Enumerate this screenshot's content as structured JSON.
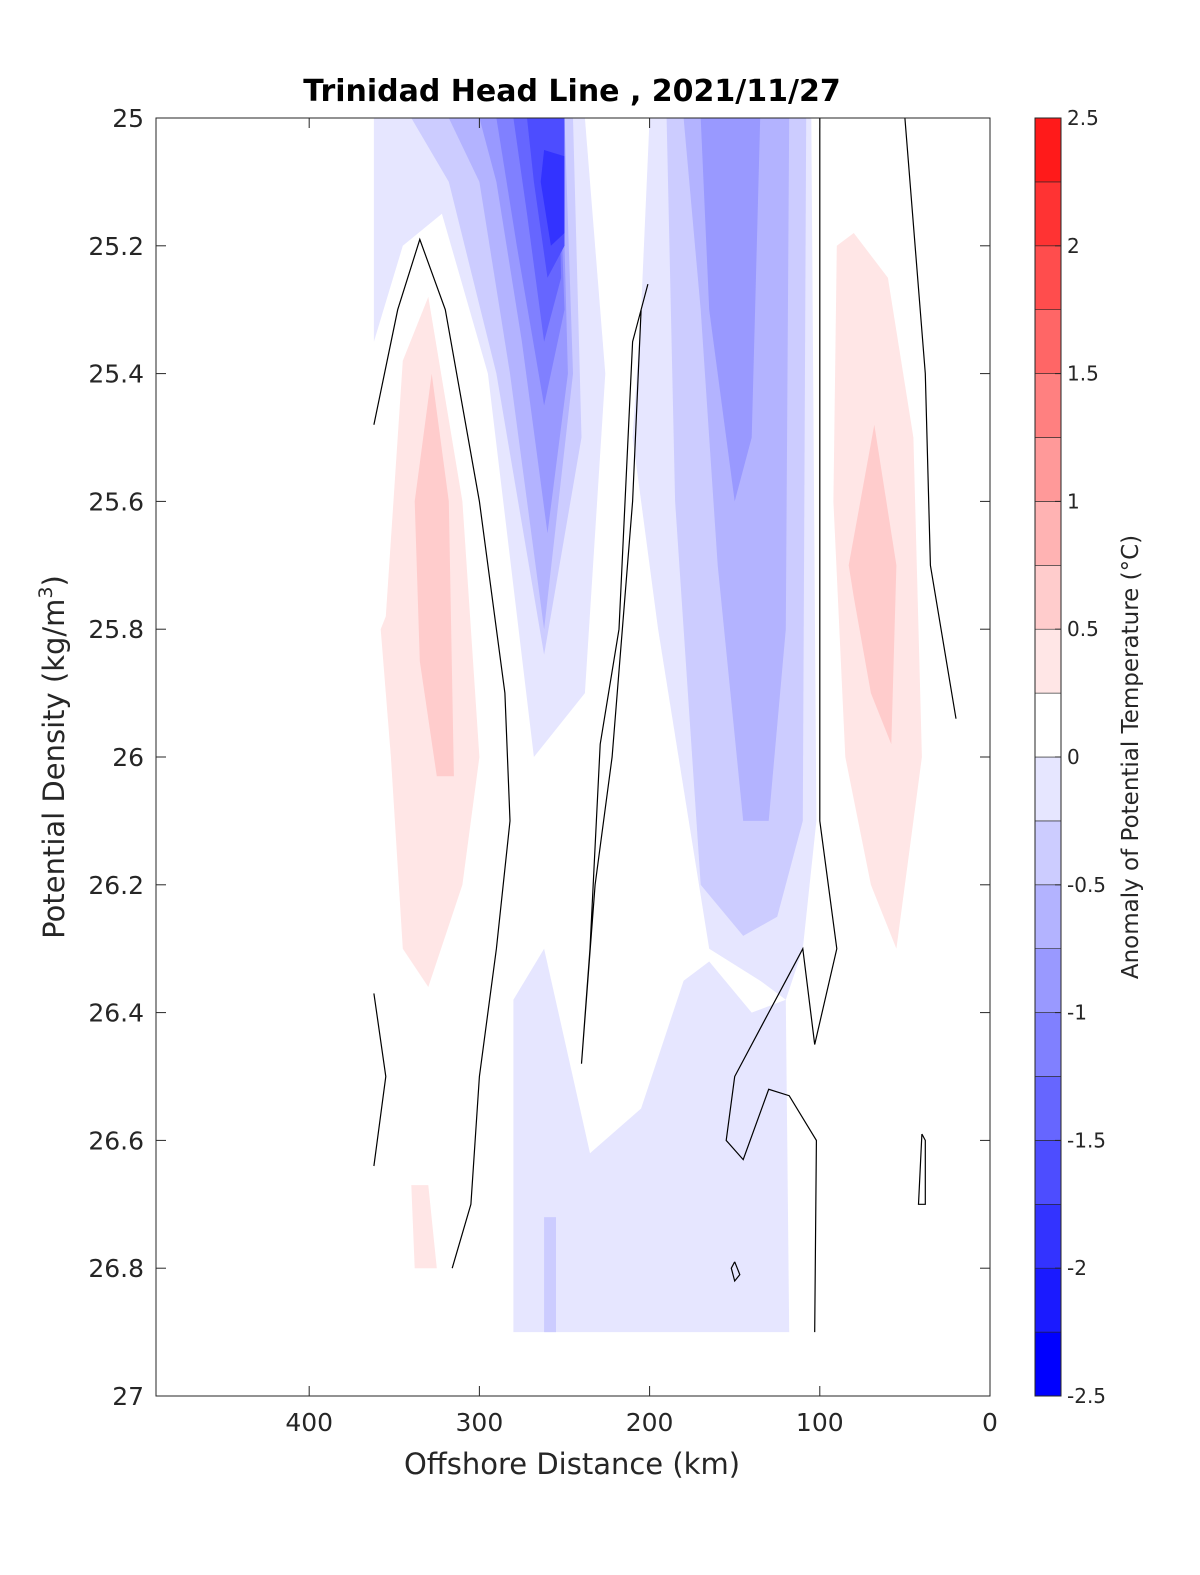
{
  "chart_data": {
    "type": "heatmap",
    "subtype": "filled-contour section",
    "title": "Trinidad Head Line , 2021/11/27",
    "xlabel": "Offshore Distance (km)",
    "ylabel": "Potential Density (kg/m",
    "ylabel_superscript": "3",
    "ylabel_suffix": ")",
    "x_axis": {
      "ticks": [
        400,
        300,
        200,
        100,
        0
      ],
      "lim": [
        490,
        0
      ],
      "reversed": true
    },
    "y_axis": {
      "ticks": [
        25,
        25.2,
        25.4,
        25.6,
        25.8,
        26,
        26.2,
        26.4,
        26.6,
        26.8,
        27
      ],
      "lim": [
        25,
        27
      ],
      "reversed": true
    },
    "colorbar": {
      "label": "Anomaly of Potential Temperature (°C)",
      "ticks": [
        2.5,
        2,
        1.5,
        1,
        0.5,
        0,
        -0.5,
        -1,
        -1.5,
        -2,
        -2.5
      ],
      "levels": [
        {
          "from": -2.5,
          "to": -2.25,
          "color": "#0000ff"
        },
        {
          "from": -2.25,
          "to": -2.0,
          "color": "#1a1aff"
        },
        {
          "from": -2.0,
          "to": -1.75,
          "color": "#3333ff"
        },
        {
          "from": -1.75,
          "to": -1.5,
          "color": "#4d4dff"
        },
        {
          "from": -1.5,
          "to": -1.25,
          "color": "#6666ff"
        },
        {
          "from": -1.25,
          "to": -1.0,
          "color": "#8080ff"
        },
        {
          "from": -1.0,
          "to": -0.75,
          "color": "#9999ff"
        },
        {
          "from": -0.75,
          "to": -0.5,
          "color": "#b3b3ff"
        },
        {
          "from": -0.5,
          "to": -0.25,
          "color": "#ccccff"
        },
        {
          "from": -0.25,
          "to": 0.0,
          "color": "#e6e6ff"
        },
        {
          "from": 0.0,
          "to": 0.25,
          "color": "#ffffff"
        },
        {
          "from": 0.25,
          "to": 0.5,
          "color": "#ffe6e6"
        },
        {
          "from": 0.5,
          "to": 0.75,
          "color": "#ffcccc"
        },
        {
          "from": 0.75,
          "to": 1.0,
          "color": "#ffb3b3"
        },
        {
          "from": 1.0,
          "to": 1.25,
          "color": "#ff9999"
        },
        {
          "from": 1.25,
          "to": 1.5,
          "color": "#ff8080"
        },
        {
          "from": 1.5,
          "to": 1.75,
          "color": "#ff6666"
        },
        {
          "from": 1.75,
          "to": 2.0,
          "color": "#ff4d4d"
        },
        {
          "from": 2.0,
          "to": 2.25,
          "color": "#ff3333"
        },
        {
          "from": 2.25,
          "to": 2.5,
          "color": "#ff1a1a"
        }
      ]
    },
    "regions": [
      {
        "name": "cold-core-offshore",
        "value": -0.25,
        "points": [
          [
            362,
            25.0
          ],
          [
            238,
            25.0
          ],
          [
            226,
            25.4
          ],
          [
            238,
            25.9
          ],
          [
            268,
            26.0
          ],
          [
            295,
            25.4
          ],
          [
            322,
            25.15
          ],
          [
            345,
            25.2
          ],
          [
            362,
            25.35
          ]
        ]
      },
      {
        "name": "cold-core-offshore",
        "value": -0.5,
        "points": [
          [
            340,
            25.0
          ],
          [
            245,
            25.0
          ],
          [
            240,
            25.5
          ],
          [
            262,
            25.84
          ],
          [
            290,
            25.4
          ],
          [
            318,
            25.1
          ]
        ]
      },
      {
        "name": "cold-core-offshore",
        "value": -0.75,
        "points": [
          [
            318,
            25.0
          ],
          [
            250,
            25.0
          ],
          [
            245,
            25.4
          ],
          [
            262,
            25.8
          ],
          [
            282,
            25.4
          ],
          [
            300,
            25.1
          ]
        ]
      },
      {
        "name": "cold-core-offshore",
        "value": -1.0,
        "points": [
          [
            300,
            25.0
          ],
          [
            252,
            25.0
          ],
          [
            248,
            25.4
          ],
          [
            260,
            25.65
          ],
          [
            275,
            25.35
          ],
          [
            290,
            25.1
          ]
        ]
      },
      {
        "name": "cold-core-offshore",
        "value": -1.25,
        "points": [
          [
            290,
            25.0
          ],
          [
            254,
            25.0
          ],
          [
            250,
            25.3
          ],
          [
            262,
            25.45
          ],
          [
            278,
            25.2
          ]
        ]
      },
      {
        "name": "cold-core-offshore",
        "value": -1.5,
        "points": [
          [
            280,
            25.0
          ],
          [
            254,
            25.0
          ],
          [
            252,
            25.25
          ],
          [
            262,
            25.35
          ],
          [
            272,
            25.15
          ]
        ]
      },
      {
        "name": "cold-core-offshore",
        "value": -1.75,
        "points": [
          [
            272,
            25.0
          ],
          [
            250,
            25.0
          ],
          [
            250,
            25.2
          ],
          [
            260,
            25.25
          ],
          [
            268,
            25.1
          ]
        ]
      },
      {
        "name": "cold-core-offshore",
        "value": -2.0,
        "points": [
          [
            262,
            25.05
          ],
          [
            250,
            25.06
          ],
          [
            250,
            25.18
          ],
          [
            258,
            25.2
          ],
          [
            264,
            25.1
          ]
        ]
      },
      {
        "name": "cold-core-nearshore",
        "value": -0.25,
        "points": [
          [
            200,
            25.0
          ],
          [
            105,
            25.0
          ],
          [
            102,
            26.1
          ],
          [
            110,
            26.3
          ],
          [
            120,
            26.38
          ],
          [
            135,
            26.35
          ],
          [
            165,
            26.3
          ],
          [
            195,
            25.8
          ],
          [
            210,
            25.5
          ],
          [
            205,
            25.3
          ]
        ]
      },
      {
        "name": "cold-core-nearshore",
        "value": -0.5,
        "points": [
          [
            190,
            25.0
          ],
          [
            108,
            25.0
          ],
          [
            110,
            26.1
          ],
          [
            125,
            26.25
          ],
          [
            145,
            26.28
          ],
          [
            170,
            26.2
          ],
          [
            185,
            25.6
          ]
        ]
      },
      {
        "name": "cold-core-nearshore",
        "value": -0.75,
        "points": [
          [
            180,
            25.0
          ],
          [
            118,
            25.0
          ],
          [
            120,
            25.8
          ],
          [
            130,
            26.1
          ],
          [
            145,
            26.1
          ],
          [
            160,
            25.7
          ],
          [
            170,
            25.3
          ]
        ]
      },
      {
        "name": "cold-core-nearshore",
        "value": -1.0,
        "points": [
          [
            170,
            25.0
          ],
          [
            135,
            25.0
          ],
          [
            140,
            25.5
          ],
          [
            150,
            25.6
          ],
          [
            165,
            25.3
          ]
        ]
      },
      {
        "name": "cold-deep",
        "value": -0.25,
        "points": [
          [
            280,
            26.38
          ],
          [
            262,
            26.3
          ],
          [
            235,
            26.62
          ],
          [
            205,
            26.55
          ],
          [
            180,
            26.35
          ],
          [
            165,
            26.32
          ],
          [
            140,
            26.4
          ],
          [
            120,
            26.38
          ],
          [
            118,
            26.9
          ],
          [
            220,
            26.9
          ],
          [
            280,
            26.9
          ]
        ]
      },
      {
        "name": "cold-deep",
        "value": -0.5,
        "points": [
          [
            262,
            26.72
          ],
          [
            255,
            26.72
          ],
          [
            255,
            26.9
          ],
          [
            262,
            26.9
          ]
        ]
      },
      {
        "name": "warm-offshore",
        "value": 0.25,
        "points": [
          [
            355,
            25.78
          ],
          [
            345,
            25.38
          ],
          [
            330,
            25.28
          ],
          [
            310,
            25.6
          ],
          [
            300,
            26.0
          ],
          [
            310,
            26.2
          ],
          [
            330,
            26.36
          ],
          [
            345,
            26.3
          ],
          [
            352,
            26.0
          ],
          [
            358,
            25.8
          ]
        ]
      },
      {
        "name": "warm-offshore",
        "value": 0.5,
        "points": [
          [
            338,
            25.6
          ],
          [
            328,
            25.4
          ],
          [
            318,
            25.6
          ],
          [
            315,
            26.03
          ],
          [
            325,
            26.03
          ],
          [
            335,
            25.85
          ]
        ]
      },
      {
        "name": "warm-nearshore",
        "value": 0.25,
        "points": [
          [
            90,
            25.2
          ],
          [
            80,
            25.18
          ],
          [
            60,
            25.25
          ],
          [
            45,
            25.5
          ],
          [
            40,
            26.0
          ],
          [
            55,
            26.3
          ],
          [
            70,
            26.2
          ],
          [
            85,
            26.0
          ],
          [
            92,
            25.6
          ]
        ]
      },
      {
        "name": "warm-nearshore",
        "value": 0.5,
        "points": [
          [
            83,
            25.7
          ],
          [
            68,
            25.48
          ],
          [
            55,
            25.7
          ],
          [
            58,
            25.98
          ],
          [
            70,
            25.9
          ],
          [
            80,
            25.75
          ]
        ]
      },
      {
        "name": "warm-deep",
        "value": 0.25,
        "points": [
          [
            340,
            26.67
          ],
          [
            330,
            26.67
          ],
          [
            325,
            26.8
          ],
          [
            338,
            26.8
          ]
        ]
      }
    ],
    "zero_contours": [
      [
        [
          362,
          25.48
        ],
        [
          348,
          25.3
        ],
        [
          335,
          25.19
        ],
        [
          320,
          25.3
        ],
        [
          300,
          25.6
        ],
        [
          285,
          25.9
        ],
        [
          282,
          26.1
        ],
        [
          290,
          26.3
        ],
        [
          300,
          26.5
        ],
        [
          305,
          26.7
        ],
        [
          316,
          26.8
        ]
      ],
      [
        [
          362,
          26.37
        ],
        [
          355,
          26.5
        ],
        [
          362,
          26.64
        ]
      ],
      [
        [
          201,
          25.26
        ],
        [
          210,
          25.35
        ],
        [
          218,
          25.8
        ],
        [
          229,
          25.98
        ],
        [
          235,
          26.3
        ],
        [
          240,
          26.48
        ],
        [
          232,
          26.2
        ],
        [
          222,
          26.0
        ],
        [
          210,
          25.6
        ],
        [
          205,
          25.3
        ]
      ],
      [
        [
          100,
          25.0
        ],
        [
          100,
          26.1
        ],
        [
          90,
          26.3
        ],
        [
          103,
          26.45
        ],
        [
          110,
          26.3
        ],
        [
          120,
          26.35
        ],
        [
          130,
          26.4
        ],
        [
          150,
          26.5
        ],
        [
          155,
          26.6
        ],
        [
          145,
          26.63
        ],
        [
          130,
          26.52
        ],
        [
          118,
          26.53
        ],
        [
          102,
          26.6
        ],
        [
          103,
          26.9
        ]
      ],
      [
        [
          50,
          25.0
        ],
        [
          38,
          25.4
        ],
        [
          35,
          25.7
        ],
        [
          20,
          25.94
        ]
      ],
      [
        [
          40,
          26.59
        ],
        [
          38,
          26.6
        ],
        [
          38,
          26.7
        ],
        [
          42,
          26.7
        ],
        [
          40,
          26.59
        ]
      ],
      [
        [
          150,
          26.79
        ],
        [
          147,
          26.81
        ],
        [
          150,
          26.82
        ],
        [
          152,
          26.8
        ],
        [
          150,
          26.79
        ]
      ]
    ]
  }
}
